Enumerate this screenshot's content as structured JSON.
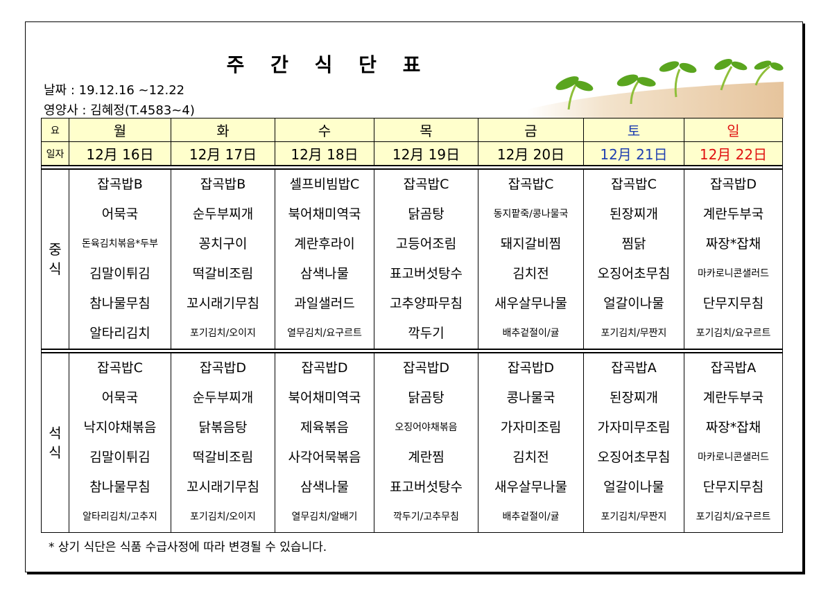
{
  "title": "주 간 식 단 표",
  "date_line": "날짜 : 19.12.16 ~12.22",
  "dietitian_line": "영양사 : 김혜정(T.4583~4)",
  "header": {
    "day_label": "요",
    "date_label": "일자",
    "days": [
      "월",
      "화",
      "수",
      "목",
      "금",
      "토",
      "일"
    ],
    "dates": [
      "12月 16日",
      "12月 17日",
      "12月 18日",
      "12月 19日",
      "12月 20日",
      "12月 21日",
      "12月 22日"
    ]
  },
  "colors": {
    "header_bg": "#ffffcc",
    "saturday": "#1f3fb0",
    "sunday": "#e01010"
  },
  "lunch": {
    "label_1": "중",
    "label_2": "식",
    "columns": [
      [
        "잡곡밥B",
        "어묵국",
        "돈육김치볶음*두부",
        "김말이튀김",
        "참나물무침",
        "알타리김치"
      ],
      [
        "잡곡밥B",
        "순두부찌개",
        "꽁치구이",
        "떡갈비조림",
        "꼬시래기무침",
        "포기김치/오이지"
      ],
      [
        "셀프비빔밥C",
        "북어채미역국",
        "계란후라이",
        "삼색나물",
        "과일샐러드",
        "열무김치/요구르트"
      ],
      [
        "잡곡밥C",
        "닭곰탕",
        "고등어조림",
        "표고버섯탕수",
        "고추양파무침",
        "깍두기"
      ],
      [
        "잡곡밥C",
        "동지팥죽/콩나물국",
        "돼지갈비찜",
        "김치전",
        "새우살무나물",
        "배추겉절이/귤"
      ],
      [
        "잡곡밥C",
        "된장찌개",
        "찜닭",
        "오징어초무침",
        "얼갈이나물",
        "포기김치/무짠지"
      ],
      [
        "잡곡밥D",
        "계란두부국",
        "짜장*잡채",
        "마카로니콘샐러드",
        "단무지무침",
        "포기김치/요구르트"
      ]
    ]
  },
  "dinner": {
    "label_1": "석",
    "label_2": "식",
    "columns": [
      [
        "잡곡밥C",
        "어묵국",
        "낙지야채볶음",
        "김말이튀김",
        "참나물무침",
        "알타리김치/고추지"
      ],
      [
        "잡곡밥D",
        "순두부찌개",
        "닭볶음탕",
        "떡갈비조림",
        "꼬시래기무침",
        "포기김치/오이지"
      ],
      [
        "잡곡밥D",
        "북어채미역국",
        "제육볶음",
        "사각어묵볶음",
        "삼색나물",
        "열무김치/알배기"
      ],
      [
        "잡곡밥D",
        "닭곰탕",
        "오징어야채볶음",
        "계란찜",
        "표고버섯탕수",
        "깍두기/고추무침"
      ],
      [
        "잡곡밥D",
        "콩나물국",
        "가자미조림",
        "김치전",
        "새우살무나물",
        "배추겉절이/귤"
      ],
      [
        "잡곡밥A",
        "된장찌개",
        "가자미무조림",
        "오징어초무침",
        "얼갈이나물",
        "포기김치/무짠지"
      ],
      [
        "잡곡밥A",
        "계란두부국",
        "짜장*잡채",
        "마카로니콘샐러드",
        "단무지무침",
        "포기김치/요구르트"
      ]
    ]
  },
  "note": "* 상기 식단은 식품 수급사정에 따라 변경될 수 있습니다."
}
